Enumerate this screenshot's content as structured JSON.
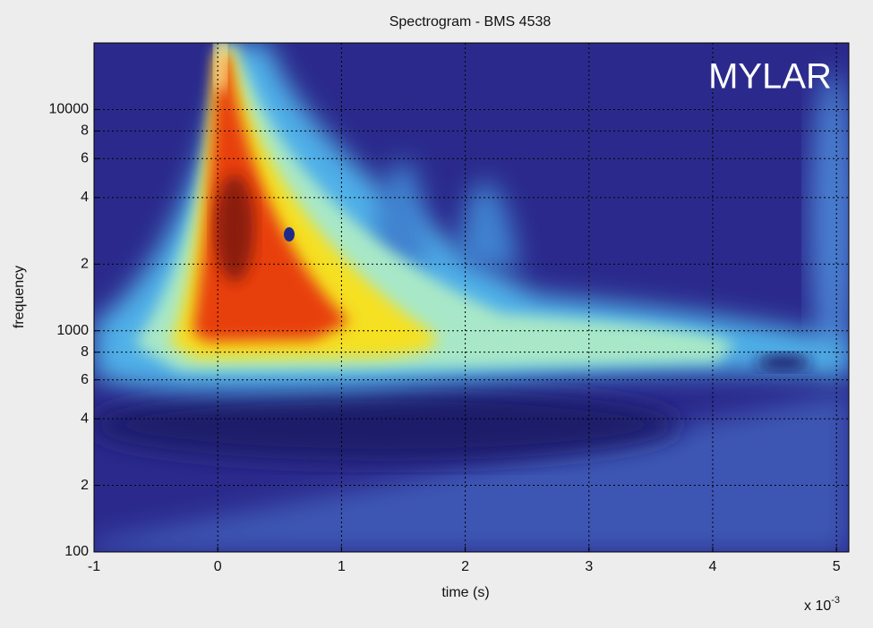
{
  "chart_data": {
    "type": "spectrogram",
    "title": "Spectrogram - BMS 4538",
    "annotation": "MYLAR",
    "xlabel": "time (s)",
    "ylabel": "frequency",
    "x_multiplier": "x 10",
    "x_multiplier_exponent": "-3",
    "xlim": [
      -1,
      5.1
    ],
    "xticks": [
      -1,
      0,
      1,
      2,
      3,
      4,
      5
    ],
    "ylim": [
      100,
      20000
    ],
    "ylog": true,
    "yticks": [
      100,
      {
        "value": 200,
        "label": "2"
      },
      {
        "value": 400,
        "label": "4"
      },
      {
        "value": 600,
        "label": "6"
      },
      {
        "value": 800,
        "label": "8"
      },
      1000,
      {
        "value": 2000,
        "label": "2"
      },
      {
        "value": 4000,
        "label": "4"
      },
      {
        "value": 6000,
        "label": "6"
      },
      {
        "value": 8000,
        "label": "8"
      },
      10000
    ],
    "grid": true
  }
}
